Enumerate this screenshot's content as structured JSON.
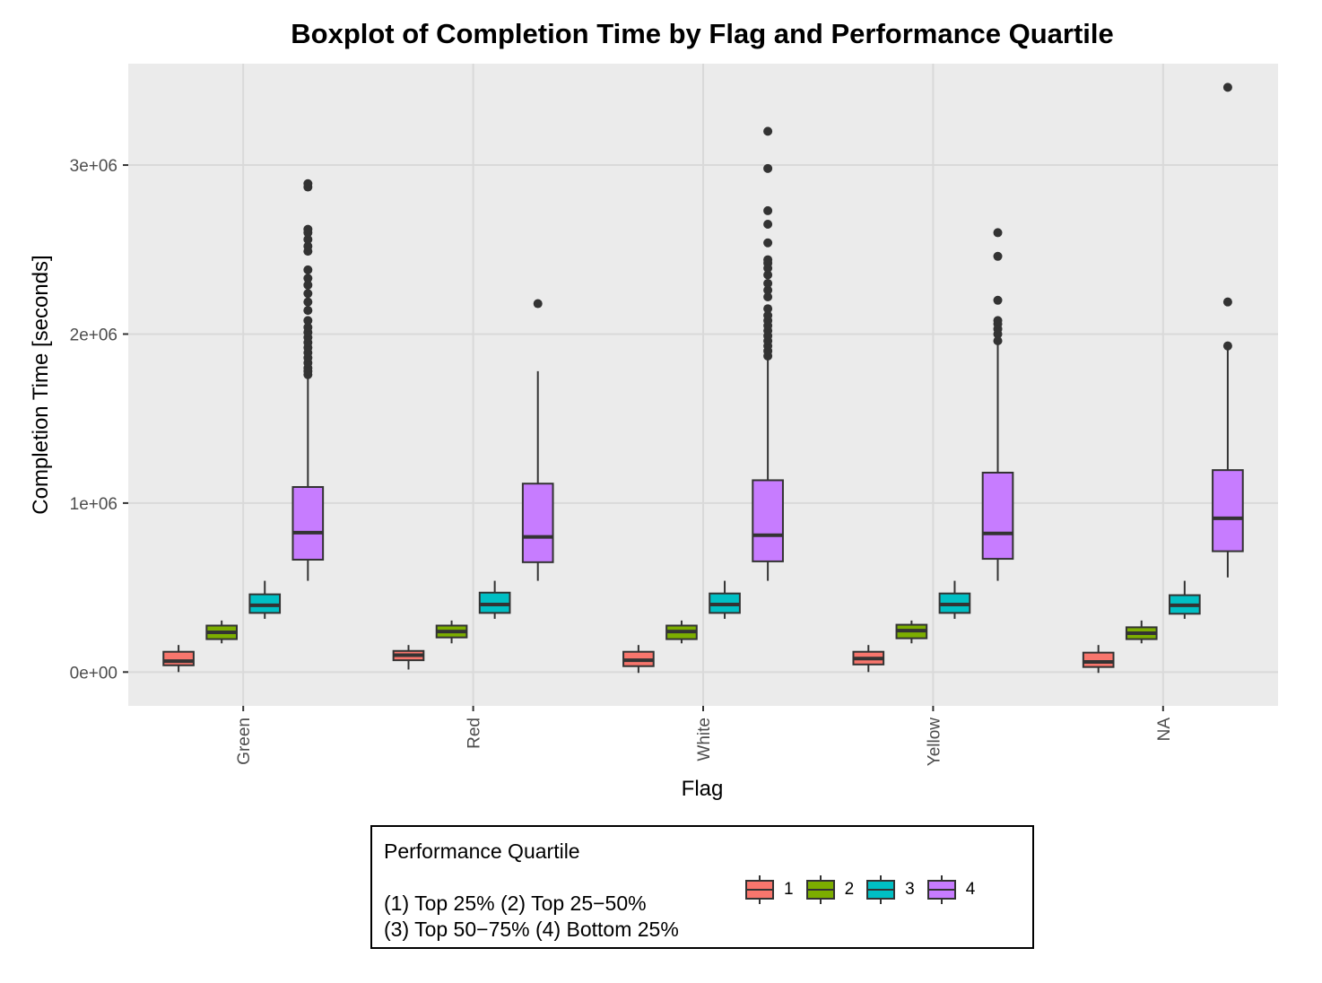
{
  "chart_data": {
    "type": "boxplot",
    "title": "Boxplot of Completion Time by Flag and Performance Quartile",
    "xlabel": "Flag",
    "ylabel": "Completion Time [seconds]",
    "categories": [
      "Green",
      "Red",
      "White",
      "Yellow",
      "NA"
    ],
    "ylim": [
      -200000,
      3600000
    ],
    "yticks": [
      0,
      1000000,
      2000000,
      3000000
    ],
    "ytick_labels": [
      "0e+00",
      "1e+06",
      "2e+06",
      "3e+06"
    ],
    "grid": true,
    "legend_position": "bottom",
    "series": [
      {
        "name": "1",
        "color": "#F8766D",
        "boxes": [
          {
            "whisker_low": 0,
            "q1": 40000,
            "median": 65000,
            "q3": 120000,
            "whisker_high": 160000,
            "outliers": []
          },
          {
            "whisker_low": 15000,
            "q1": 70000,
            "median": 100000,
            "q3": 125000,
            "whisker_high": 160000,
            "outliers": []
          },
          {
            "whisker_low": -5000,
            "q1": 35000,
            "median": 70000,
            "q3": 120000,
            "whisker_high": 160000,
            "outliers": []
          },
          {
            "whisker_low": 0,
            "q1": 45000,
            "median": 80000,
            "q3": 120000,
            "whisker_high": 160000,
            "outliers": []
          },
          {
            "whisker_low": -5000,
            "q1": 30000,
            "median": 60000,
            "q3": 115000,
            "whisker_high": 160000,
            "outliers": []
          }
        ]
      },
      {
        "name": "2",
        "color": "#7CAE00",
        "boxes": [
          {
            "whisker_low": 170000,
            "q1": 195000,
            "median": 235000,
            "q3": 275000,
            "whisker_high": 305000,
            "outliers": []
          },
          {
            "whisker_low": 170000,
            "q1": 205000,
            "median": 240000,
            "q3": 275000,
            "whisker_high": 305000,
            "outliers": []
          },
          {
            "whisker_low": 170000,
            "q1": 195000,
            "median": 240000,
            "q3": 275000,
            "whisker_high": 305000,
            "outliers": []
          },
          {
            "whisker_low": 170000,
            "q1": 200000,
            "median": 245000,
            "q3": 280000,
            "whisker_high": 305000,
            "outliers": []
          },
          {
            "whisker_low": 170000,
            "q1": 195000,
            "median": 230000,
            "q3": 265000,
            "whisker_high": 305000,
            "outliers": []
          }
        ]
      },
      {
        "name": "3",
        "color": "#00BFC4",
        "boxes": [
          {
            "whisker_low": 315000,
            "q1": 350000,
            "median": 395000,
            "q3": 460000,
            "whisker_high": 540000,
            "outliers": []
          },
          {
            "whisker_low": 315000,
            "q1": 350000,
            "median": 400000,
            "q3": 470000,
            "whisker_high": 540000,
            "outliers": []
          },
          {
            "whisker_low": 315000,
            "q1": 350000,
            "median": 400000,
            "q3": 465000,
            "whisker_high": 540000,
            "outliers": []
          },
          {
            "whisker_low": 315000,
            "q1": 350000,
            "median": 400000,
            "q3": 465000,
            "whisker_high": 540000,
            "outliers": []
          },
          {
            "whisker_low": 315000,
            "q1": 345000,
            "median": 395000,
            "q3": 455000,
            "whisker_high": 540000,
            "outliers": []
          }
        ]
      },
      {
        "name": "4",
        "color": "#C77CFF",
        "boxes": [
          {
            "whisker_low": 540000,
            "q1": 665000,
            "median": 825000,
            "q3": 1095000,
            "whisker_high": 1750000,
            "outliers": [
              1760000,
              1780000,
              1800000,
              1830000,
              1860000,
              1890000,
              1920000,
              1950000,
              1980000,
              2010000,
              2040000,
              2080000,
              2140000,
              2190000,
              2240000,
              2290000,
              2330000,
              2380000,
              2490000,
              2520000,
              2560000,
              2600000,
              2620000,
              2870000,
              2890000
            ]
          },
          {
            "whisker_low": 540000,
            "q1": 650000,
            "median": 800000,
            "q3": 1115000,
            "whisker_high": 1780000,
            "outliers": [
              2180000
            ]
          },
          {
            "whisker_low": 540000,
            "q1": 655000,
            "median": 810000,
            "q3": 1135000,
            "whisker_high": 1860000,
            "outliers": [
              1870000,
              1900000,
              1930000,
              1960000,
              1990000,
              2020000,
              2050000,
              2080000,
              2110000,
              2150000,
              2220000,
              2260000,
              2300000,
              2350000,
              2390000,
              2420000,
              2440000,
              2540000,
              2650000,
              2730000,
              2980000,
              3200000
            ]
          },
          {
            "whisker_low": 540000,
            "q1": 670000,
            "median": 820000,
            "q3": 1180000,
            "whisker_high": 1940000,
            "outliers": [
              1960000,
              2000000,
              2030000,
              2060000,
              2080000,
              2200000,
              2460000,
              2600000
            ]
          },
          {
            "whisker_low": 560000,
            "q1": 715000,
            "median": 910000,
            "q3": 1195000,
            "whisker_high": 1920000,
            "outliers": [
              1930000,
              2190000,
              3460000
            ]
          }
        ]
      }
    ]
  },
  "legend": {
    "title": "Performance Quartile",
    "note_line1": "(1) Top 25% (2) Top 25−50%",
    "note_line2": "(3) Top 50−75% (4) Bottom 25%",
    "keys": [
      "1",
      "2",
      "3",
      "4"
    ]
  },
  "colors": {
    "panel_background": "#EBEBEB",
    "grid": "#D9D9D9",
    "box_outline": "#333333",
    "outlier": "#333333"
  }
}
